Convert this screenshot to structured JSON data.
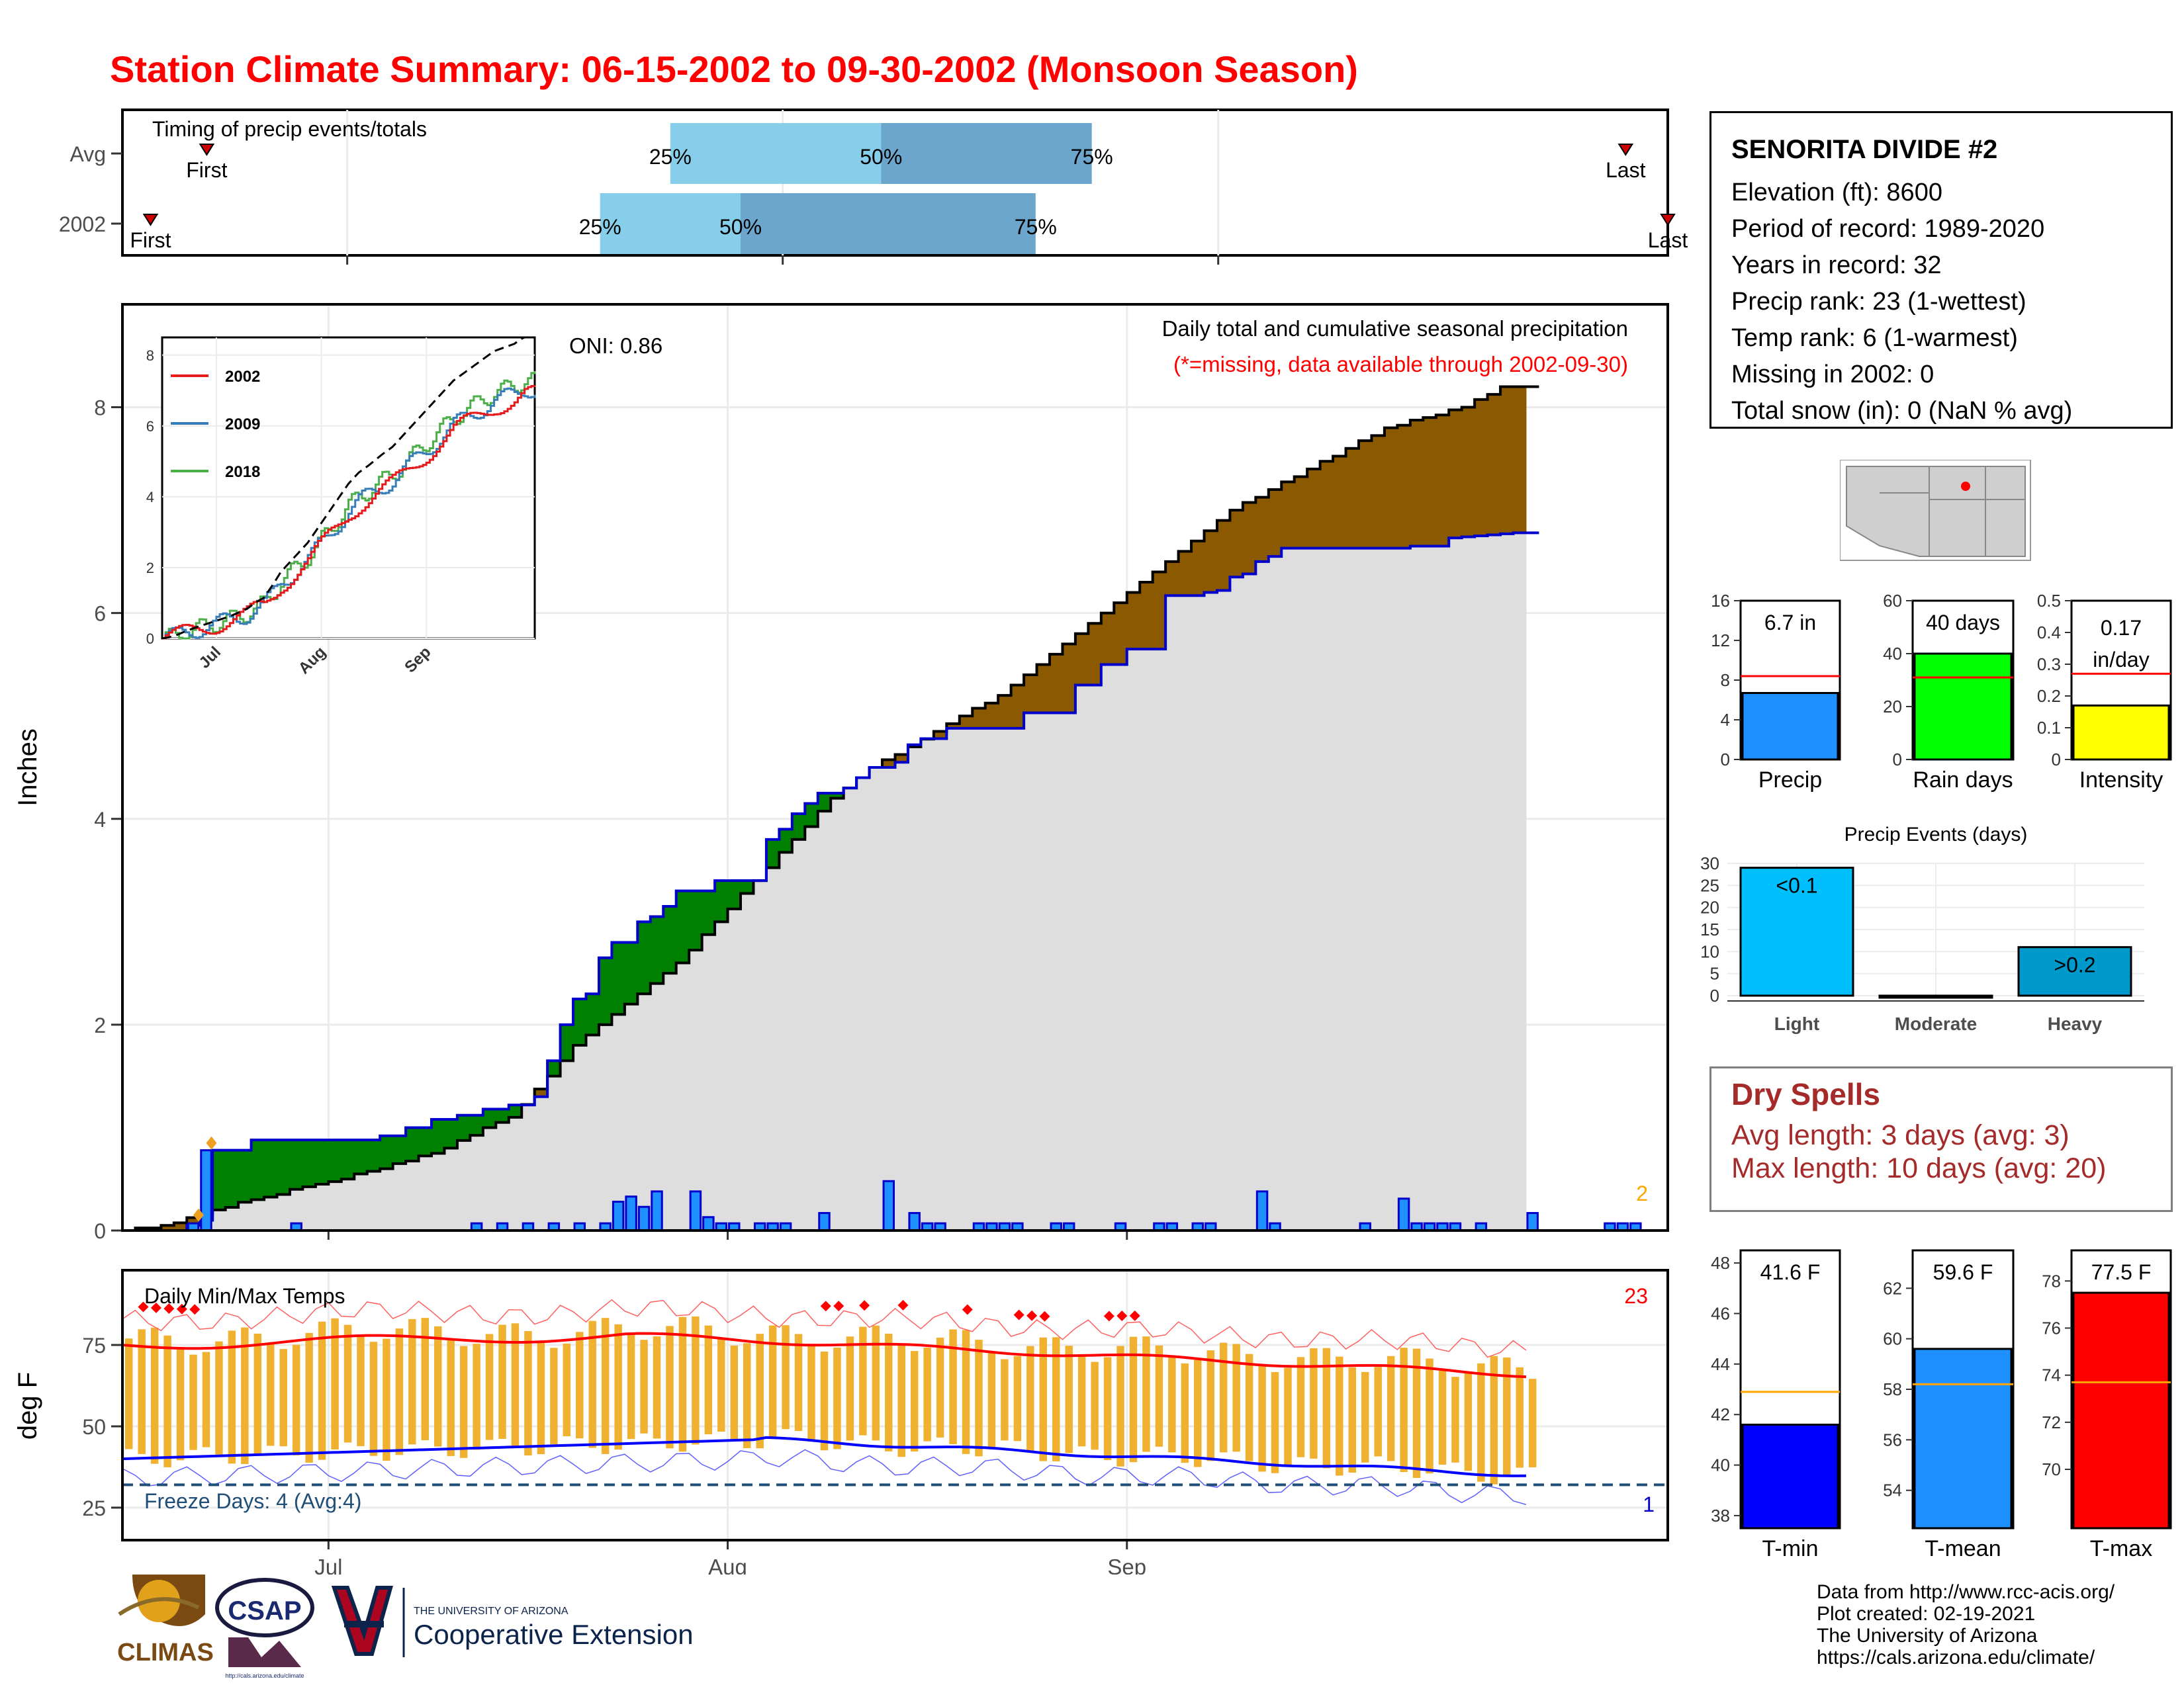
{
  "title": "Station Climate Summary: 06-15-2002 to 09-30-2002 (Monsoon Season)",
  "station": {
    "name": "SENORITA DIVIDE #2",
    "lines": [
      "Elevation (ft): 8600",
      "Period of record: 1989-2020",
      "Years in record: 32",
      "Precip rank: 23 (1-wettest)",
      "Temp rank: 6 (1-warmest)",
      "Missing in 2002: 0",
      "Total snow (in): 0 (NaN % avg)"
    ]
  },
  "dry_spells": {
    "title": "Dry Spells",
    "avg_length": "Avg length: 3 days (avg: 3)",
    "max_length": "Max length: 10 days (avg: 20)"
  },
  "credits": [
    "Data from http://www.rcc-acis.org/",
    "Plot created: 02-19-2021",
    "The University of Arizona",
    "https://cals.arizona.edu/climate/"
  ],
  "logos": {
    "climas": "CLIMAS",
    "csap": "CSAP",
    "csap_url": "http://cals.arizona.edu/climate",
    "ua_small": "THE UNIVERSITY OF ARIZONA",
    "ua_large": "Cooperative Extension"
  },
  "colors": {
    "title": "#ff0000",
    "above_avg": "#008000",
    "below_avg": "#8b5a00",
    "precip_bar": "#1e90ff",
    "tmax": "#ff0000",
    "tmin": "#0000ff",
    "daily_range": "#f0b030"
  },
  "chart_data": [
    {
      "id": "timing",
      "type": "bar",
      "title": "Timing of precip events/totals",
      "categories": [
        "Avg",
        "2002"
      ],
      "rows": [
        {
          "name": "Avg",
          "first": "06-21",
          "p25": "07-24",
          "p50": "08-08",
          "p75": "08-23",
          "last": "09-30",
          "first_label": "First",
          "last_label": "Last"
        },
        {
          "name": "2002",
          "first": "06-17",
          "p25": "07-19",
          "p50": "07-29",
          "p75": "08-19",
          "last": "10-03",
          "first_label": "First",
          "last_label": "Last"
        }
      ],
      "pct_labels": [
        "25%",
        "50%",
        "75%"
      ]
    },
    {
      "id": "cumulative",
      "type": "area",
      "title": "Daily total and cumulative seasonal precipitation",
      "subtitle": "(*=missing, data available through 2002-09-30)",
      "annotation": "ONI: 0.86",
      "corner_label": "2",
      "ylabel": "Inches",
      "ylim": [
        0,
        9
      ],
      "yticks": [
        0,
        2,
        4,
        6,
        8
      ],
      "xticks": [
        "Jul",
        "Aug",
        "Sep"
      ],
      "xtick_dates": [
        "07-01",
        "08-01",
        "09-01"
      ],
      "x_start": "06-15",
      "x_end": "09-30",
      "observed_2002": [
        [
          0,
          0
        ],
        [
          5,
          0.05
        ],
        [
          6,
          0.1
        ],
        [
          7,
          0.78
        ],
        [
          10,
          0.88
        ],
        [
          20,
          0.92
        ],
        [
          22,
          1.0
        ],
        [
          24,
          1.08
        ],
        [
          26,
          1.12
        ],
        [
          28,
          1.18
        ],
        [
          30,
          1.22
        ],
        [
          32,
          1.3
        ],
        [
          33,
          1.65
        ],
        [
          34,
          2.0
        ],
        [
          35,
          2.25
        ],
        [
          36,
          2.3
        ],
        [
          37,
          2.65
        ],
        [
          38,
          2.8
        ],
        [
          40,
          3.0
        ],
        [
          41,
          3.05
        ],
        [
          42,
          3.15
        ],
        [
          43,
          3.3
        ],
        [
          46,
          3.4
        ],
        [
          50,
          3.8
        ],
        [
          51,
          3.9
        ],
        [
          52,
          4.05
        ],
        [
          53,
          4.15
        ],
        [
          54,
          4.25
        ],
        [
          56,
          4.3
        ],
        [
          57,
          4.4
        ],
        [
          58,
          4.5
        ],
        [
          60,
          4.55
        ],
        [
          61,
          4.72
        ],
        [
          62,
          4.78
        ],
        [
          64,
          4.88
        ],
        [
          70,
          5.03
        ],
        [
          74,
          5.3
        ],
        [
          76,
          5.5
        ],
        [
          78,
          5.65
        ],
        [
          81,
          6.17
        ],
        [
          84,
          6.2
        ],
        [
          85,
          6.22
        ],
        [
          86,
          6.35
        ],
        [
          87,
          6.38
        ],
        [
          88,
          6.5
        ],
        [
          89,
          6.55
        ],
        [
          90,
          6.63
        ],
        [
          100,
          6.65
        ],
        [
          103,
          6.73
        ],
        [
          104,
          6.74
        ],
        [
          105,
          6.75
        ],
        [
          106,
          6.76
        ],
        [
          107,
          6.77
        ],
        [
          108,
          6.78
        ]
      ],
      "average": [
        [
          0,
          0
        ],
        [
          2,
          0.03
        ],
        [
          4,
          0.08
        ],
        [
          7,
          0.2
        ],
        [
          10,
          0.3
        ],
        [
          15,
          0.45
        ],
        [
          20,
          0.6
        ],
        [
          25,
          0.8
        ],
        [
          28,
          1.0
        ],
        [
          30,
          1.1
        ],
        [
          33,
          1.5
        ],
        [
          35,
          1.8
        ],
        [
          37,
          2.0
        ],
        [
          40,
          2.3
        ],
        [
          43,
          2.6
        ],
        [
          46,
          3.0
        ],
        [
          49,
          3.4
        ],
        [
          52,
          3.8
        ],
        [
          55,
          4.2
        ],
        [
          58,
          4.5
        ],
        [
          61,
          4.7
        ],
        [
          65,
          5.0
        ],
        [
          68,
          5.2
        ],
        [
          71,
          5.5
        ],
        [
          74,
          5.8
        ],
        [
          77,
          6.1
        ],
        [
          80,
          6.4
        ],
        [
          83,
          6.7
        ],
        [
          86,
          7.0
        ],
        [
          89,
          7.2
        ],
        [
          92,
          7.4
        ],
        [
          95,
          7.6
        ],
        [
          98,
          7.8
        ],
        [
          101,
          7.9
        ],
        [
          104,
          8.0
        ],
        [
          107,
          8.2
        ],
        [
          108,
          8.2
        ]
      ],
      "daily_precip": [
        [
          6,
          0.07
        ],
        [
          7,
          0.78
        ],
        [
          14,
          0.07
        ],
        [
          28,
          0.07
        ],
        [
          30,
          0.07
        ],
        [
          32,
          0.07
        ],
        [
          34,
          0.07
        ],
        [
          36,
          0.07
        ],
        [
          38,
          0.07
        ],
        [
          39,
          0.28
        ],
        [
          40,
          0.33
        ],
        [
          41,
          0.23
        ],
        [
          42,
          0.38
        ],
        [
          45,
          0.38
        ],
        [
          46,
          0.13
        ],
        [
          47,
          0.07
        ],
        [
          48,
          0.07
        ],
        [
          50,
          0.07
        ],
        [
          51,
          0.07
        ],
        [
          52,
          0.07
        ],
        [
          55,
          0.17
        ],
        [
          60,
          0.48
        ],
        [
          62,
          0.17
        ],
        [
          63,
          0.07
        ],
        [
          64,
          0.07
        ],
        [
          67,
          0.07
        ],
        [
          68,
          0.07
        ],
        [
          69,
          0.07
        ],
        [
          70,
          0.07
        ],
        [
          73,
          0.07
        ],
        [
          74,
          0.07
        ],
        [
          78,
          0.07
        ],
        [
          81,
          0.07
        ],
        [
          82,
          0.07
        ],
        [
          84,
          0.07
        ],
        [
          85,
          0.07
        ],
        [
          89,
          0.38
        ],
        [
          90,
          0.07
        ],
        [
          97,
          0.07
        ],
        [
          100,
          0.31
        ],
        [
          101,
          0.07
        ],
        [
          102,
          0.07
        ],
        [
          103,
          0.07
        ],
        [
          104,
          0.07
        ],
        [
          106,
          0.07
        ],
        [
          110,
          0.17
        ],
        [
          116,
          0.07
        ],
        [
          117,
          0.07
        ],
        [
          118,
          0.07
        ]
      ]
    },
    {
      "id": "inset",
      "type": "line",
      "xticks": [
        "Jul",
        "Aug",
        "Sep"
      ],
      "ylim": [
        0,
        8.5
      ],
      "yticks": [
        0,
        2,
        4,
        6,
        8
      ],
      "series": [
        {
          "name": "2002",
          "color": "#e41a1c"
        },
        {
          "name": "2009",
          "color": "#377eb8"
        },
        {
          "name": "2018",
          "color": "#4daf4a"
        }
      ]
    },
    {
      "id": "temps",
      "type": "line",
      "title": "Daily Min/Max Temps",
      "annotation": "Freeze Days: 4 (Avg:4)",
      "corner_top": "23",
      "corner_bottom": "1",
      "ylabel": "deg F",
      "ylim": [
        15,
        98
      ],
      "yticks": [
        25,
        50,
        75
      ],
      "freeze_line": 32,
      "tmax_avg_start": 75,
      "tmax_avg_mid": 78,
      "tmax_avg_end": 66,
      "tmin_avg_start": 40,
      "tmin_avg_mid": 46,
      "tmin_avg_end": 35
    },
    {
      "id": "precip_total",
      "type": "bar",
      "categories": [
        "Precip"
      ],
      "values": [
        6.7
      ],
      "average": 8.4,
      "label": "6.7 in",
      "ylim": [
        0,
        16
      ],
      "yticks": [
        0,
        4,
        8,
        12,
        16
      ],
      "color": "#1e90ff"
    },
    {
      "id": "rain_days",
      "type": "bar",
      "categories": [
        "Rain days"
      ],
      "values": [
        40
      ],
      "average": 31,
      "label": "40 days",
      "ylim": [
        0,
        60
      ],
      "yticks": [
        0,
        20,
        40,
        60
      ],
      "color": "#00ff00"
    },
    {
      "id": "intensity",
      "type": "bar",
      "categories": [
        "Intensity"
      ],
      "values": [
        0.17
      ],
      "average": 0.27,
      "label": "0.17 in/day",
      "label_line1": "0.17",
      "label_line2": "in/day",
      "ylim": [
        0,
        0.5
      ],
      "yticks": [
        0.0,
        0.1,
        0.2,
        0.3,
        0.4,
        0.5
      ],
      "color": "#ffff00"
    },
    {
      "id": "precip_events",
      "type": "bar",
      "title": "Precip Events (days)",
      "categories": [
        "Light",
        "Moderate",
        "Heavy"
      ],
      "values": [
        29,
        0,
        11
      ],
      "bar_labels": [
        "<0.1",
        "",
        ">0.2"
      ],
      "ylim": [
        0,
        30
      ],
      "yticks": [
        0,
        5,
        10,
        15,
        20,
        25,
        30
      ]
    },
    {
      "id": "tmin_total",
      "type": "bar",
      "categories": [
        "T-min"
      ],
      "values": [
        41.6
      ],
      "average": 42.9,
      "label": "41.6 F",
      "ylim": [
        37.5,
        48.5
      ],
      "yticks": [
        38,
        40,
        42,
        44,
        46,
        48
      ],
      "color": "#0000ff"
    },
    {
      "id": "tmean_total",
      "type": "bar",
      "categories": [
        "T-mean"
      ],
      "values": [
        59.6
      ],
      "average": 58.2,
      "label": "59.6 F",
      "ylim": [
        52.5,
        63.5
      ],
      "yticks": [
        54,
        56,
        58,
        60,
        62
      ],
      "color": "#1e90ff"
    },
    {
      "id": "tmax_total",
      "type": "bar",
      "categories": [
        "T-max"
      ],
      "values": [
        77.5
      ],
      "average": 73.7,
      "label": "77.5 F",
      "ylim": [
        67.5,
        79.3
      ],
      "yticks": [
        70,
        72,
        74,
        76,
        78
      ],
      "color": "#ff0000"
    }
  ]
}
